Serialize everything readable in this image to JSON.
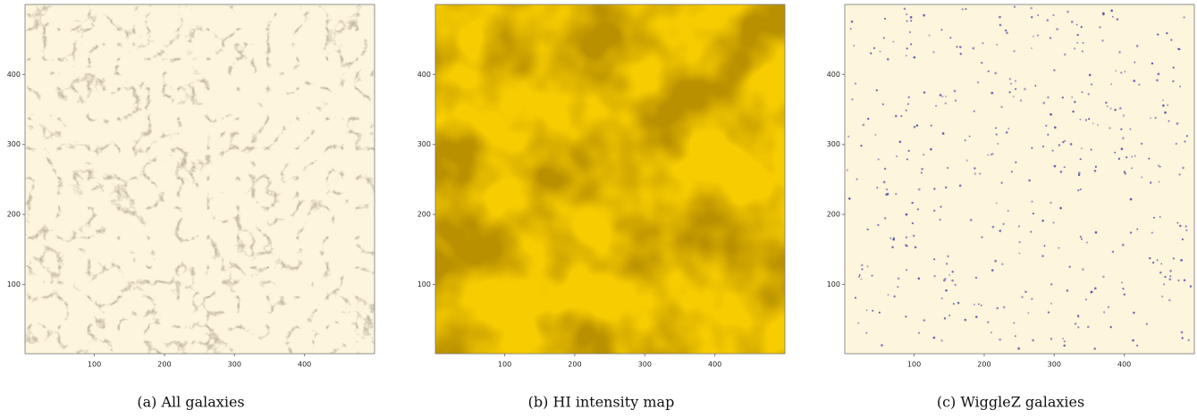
{
  "chart_data": [
    {
      "type": "image",
      "caption": "(a) All galaxies",
      "color": "#fdf5dc",
      "mark_color": "#3a2e1a",
      "xlim": [
        1,
        500
      ],
      "ylim": [
        1,
        500
      ],
      "xticks": [
        100,
        200,
        300,
        400
      ],
      "yticks": [
        100,
        200,
        300,
        400
      ]
    },
    {
      "type": "image",
      "caption": "(b) HI intensity map",
      "color": "#f7cc00",
      "mark_color": "#7a4800",
      "xlim": [
        1,
        500
      ],
      "ylim": [
        1,
        500
      ],
      "xticks": [
        100,
        200,
        300,
        400
      ],
      "yticks": [
        100,
        200,
        300,
        400
      ]
    },
    {
      "type": "image",
      "caption": "(c) WiggleZ galaxies",
      "color": "#fdf5dc",
      "mark_color": "#5a5aa8",
      "xlim": [
        1,
        500
      ],
      "ylim": [
        1,
        500
      ],
      "xticks": [
        100,
        200,
        300,
        400
      ],
      "yticks": [
        100,
        200,
        300,
        400
      ]
    }
  ]
}
